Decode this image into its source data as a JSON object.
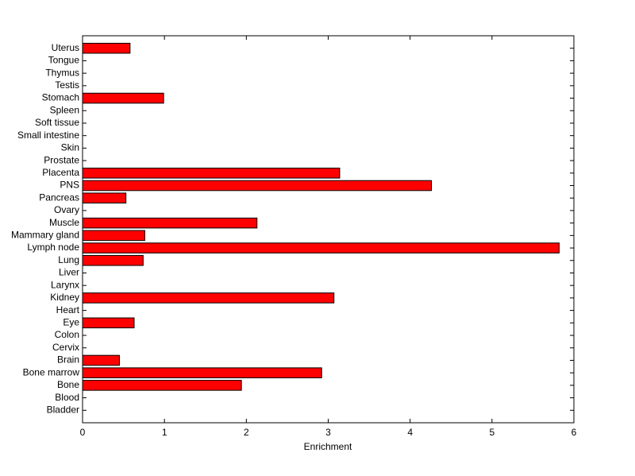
{
  "chart_data": {
    "type": "barh",
    "xlabel": "Enrichment",
    "color": "#ff0000",
    "categories": [
      "Bladder",
      "Blood",
      "Bone",
      "Bone marrow",
      "Brain",
      "Cervix",
      "Colon",
      "Eye",
      "Heart",
      "Kidney",
      "Larynx",
      "Liver",
      "Lung",
      "Lymph node",
      "Mammary gland",
      "Muscle",
      "Ovary",
      "Pancreas",
      "PNS",
      "Placenta",
      "Prostate",
      "Skin",
      "Small intestine",
      "Soft tissue",
      "Spleen",
      "Stomach",
      "Testis",
      "Thymus",
      "Tongue",
      "Uterus"
    ],
    "values": [
      0,
      0,
      1.94,
      2.92,
      0.45,
      0,
      0,
      0.63,
      0,
      3.07,
      0,
      0,
      0.74,
      5.82,
      0.76,
      2.13,
      0,
      0.53,
      4.26,
      3.14,
      0,
      0,
      0,
      0,
      0,
      0.99,
      0,
      0,
      0,
      0.58
    ],
    "xlim": [
      0,
      6
    ],
    "xticks": [
      0,
      1,
      2,
      3,
      4,
      5,
      6
    ]
  }
}
